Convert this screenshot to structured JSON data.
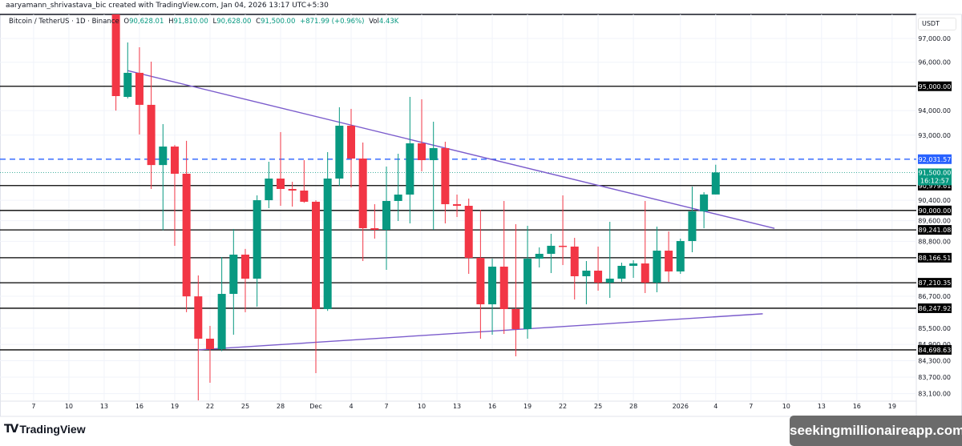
{
  "credit": "aaryamann_shrivastava_bic created with TradingView.com, Jan 04, 2026 13:17 UTC+5:30",
  "legend": {
    "symbol": "Bitcoin / TetherUS · 1D · Binance",
    "open_label": "O",
    "open": "90,628.01",
    "high_label": "H",
    "high": "91,810.00",
    "low_label": "L",
    "low": "90,628.00",
    "close_label": "C",
    "close": "91,500.00",
    "change": "+871.99 (+0.96%)",
    "vol_label": "Vol",
    "vol": "4.43K"
  },
  "price_axis": {
    "currency": "USDT",
    "scale": "log",
    "ticks": [
      "97,000.00",
      "96,000.00",
      "94,000.00",
      "93,000.00",
      "90,400.00",
      "89,600.00",
      "88,800.00",
      "86,700.00",
      "85,500.00",
      "84,900.00",
      "84,300.00",
      "83,700.00",
      "83,100.00"
    ],
    "tick_values": [
      97000,
      96000,
      94000,
      93000,
      90400,
      89600,
      88800,
      86700,
      85500,
      84900,
      84300,
      83700,
      83100
    ]
  },
  "time_axis": {
    "ticks": [
      {
        "label": "7",
        "date": "2025-11-07"
      },
      {
        "label": "10",
        "date": "2025-11-10"
      },
      {
        "label": "13",
        "date": "2025-11-13"
      },
      {
        "label": "16",
        "date": "2025-11-16"
      },
      {
        "label": "19",
        "date": "2025-11-19"
      },
      {
        "label": "22",
        "date": "2025-11-22"
      },
      {
        "label": "25",
        "date": "2025-11-25"
      },
      {
        "label": "28",
        "date": "2025-11-28"
      },
      {
        "label": "Dec",
        "date": "2025-12-01"
      },
      {
        "label": "4",
        "date": "2025-12-04"
      },
      {
        "label": "7",
        "date": "2025-12-07"
      },
      {
        "label": "10",
        "date": "2025-12-10"
      },
      {
        "label": "13",
        "date": "2025-12-13"
      },
      {
        "label": "16",
        "date": "2025-12-16"
      },
      {
        "label": "19",
        "date": "2025-12-19"
      },
      {
        "label": "22",
        "date": "2025-12-22"
      },
      {
        "label": "25",
        "date": "2025-12-25"
      },
      {
        "label": "28",
        "date": "2025-12-28"
      },
      {
        "label": "2026",
        "date": "2026-01-01"
      },
      {
        "label": "4",
        "date": "2026-01-04"
      },
      {
        "label": "7",
        "date": "2026-01-07"
      },
      {
        "label": "10",
        "date": "2026-01-10"
      },
      {
        "label": "13",
        "date": "2026-01-13"
      },
      {
        "label": "16",
        "date": "2026-01-16"
      },
      {
        "label": "19",
        "date": "2026-01-19"
      }
    ]
  },
  "levels": [
    {
      "price": 95000.0,
      "label": "95,000.00"
    },
    {
      "price": 90979.61,
      "label": "90,979.61"
    },
    {
      "price": 90000.0,
      "label": "90,000.00"
    },
    {
      "price": 89241.08,
      "label": "89,241.08"
    },
    {
      "price": 88166.51,
      "label": "88,166.51"
    },
    {
      "price": 87210.35,
      "label": "87,210.35"
    },
    {
      "price": 86247.92,
      "label": "86,247.92"
    },
    {
      "price": 84698.63,
      "label": "84,698.63"
    }
  ],
  "alert_line": {
    "price": 92031.57,
    "label": "92,031.57",
    "color": "#2962ff"
  },
  "last_price": {
    "price": 91500.0,
    "label": "91,500.00",
    "countdown": "16:12:57",
    "color": "#089981"
  },
  "trendlines": [
    {
      "from": {
        "date": "2025-11-15",
        "price": 95650
      },
      "to": {
        "date": "2026-01-09",
        "price": 89300
      }
    },
    {
      "from": {
        "date": "2025-11-21",
        "price": 84700
      },
      "to": {
        "date": "2026-01-08",
        "price": 86040
      }
    }
  ],
  "colors": {
    "up": "#089981",
    "down": "#f23645",
    "trendline": "#7b5ccc",
    "level": "#000000"
  },
  "chart_data": {
    "type": "candlestick",
    "ylim": [
      82900,
      98100
    ],
    "candles": [
      {
        "d": "2025-11-14",
        "o": 98400,
        "h": 99000,
        "l": 94000,
        "c": 94595
      },
      {
        "d": "2025-11-15",
        "o": 94562,
        "h": 96830,
        "l": 94500,
        "c": 95558
      },
      {
        "d": "2025-11-16",
        "o": 95558,
        "h": 96628,
        "l": 93027,
        "c": 94235
      },
      {
        "d": "2025-11-17",
        "o": 94235,
        "h": 96023,
        "l": 90846,
        "c": 91797
      },
      {
        "d": "2025-11-18",
        "o": 91797,
        "h": 93449,
        "l": 89227,
        "c": 92539
      },
      {
        "d": "2025-11-19",
        "o": 92539,
        "h": 92600,
        "l": 88623,
        "c": 91450
      },
      {
        "d": "2025-11-20",
        "o": 91450,
        "h": 92770,
        "l": 86098,
        "c": 86695
      },
      {
        "d": "2025-11-21",
        "o": 86695,
        "h": 87488,
        "l": 82740,
        "c": 85112
      },
      {
        "d": "2025-11-22",
        "o": 85112,
        "h": 85588,
        "l": 83494,
        "c": 84727
      },
      {
        "d": "2025-11-23",
        "o": 84727,
        "h": 88192,
        "l": 84650,
        "c": 86788
      },
      {
        "d": "2025-11-24",
        "o": 86788,
        "h": 89275,
        "l": 85259,
        "c": 88285
      },
      {
        "d": "2025-11-25",
        "o": 88285,
        "h": 88505,
        "l": 86098,
        "c": 87366
      },
      {
        "d": "2025-11-26",
        "o": 87366,
        "h": 90592,
        "l": 86306,
        "c": 90402
      },
      {
        "d": "2025-11-27",
        "o": 90402,
        "h": 91929,
        "l": 90088,
        "c": 91258
      },
      {
        "d": "2025-11-28",
        "o": 91258,
        "h": 93124,
        "l": 90182,
        "c": 90846
      },
      {
        "d": "2025-11-29",
        "o": 90846,
        "h": 91130,
        "l": 90151,
        "c": 90782
      },
      {
        "d": "2025-11-30",
        "o": 90782,
        "h": 91993,
        "l": 90300,
        "c": 90341
      },
      {
        "d": "2025-12-01",
        "o": 90341,
        "h": 90400,
        "l": 83845,
        "c": 86216
      },
      {
        "d": "2025-12-02",
        "o": 86216,
        "h": 92314,
        "l": 86150,
        "c": 91259
      },
      {
        "d": "2025-12-03",
        "o": 91259,
        "h": 94136,
        "l": 90972,
        "c": 93383
      },
      {
        "d": "2025-12-04",
        "o": 93383,
        "h": 94070,
        "l": 90909,
        "c": 92057
      },
      {
        "d": "2025-12-05",
        "o": 92057,
        "h": 92702,
        "l": 88039,
        "c": 89306
      },
      {
        "d": "2025-12-06",
        "o": 89306,
        "h": 90246,
        "l": 88902,
        "c": 89244
      },
      {
        "d": "2025-12-07",
        "o": 89244,
        "h": 91737,
        "l": 87701,
        "c": 90372
      },
      {
        "d": "2025-12-08",
        "o": 90372,
        "h": 92250,
        "l": 89587,
        "c": 90624
      },
      {
        "d": "2025-12-09",
        "o": 90624,
        "h": 94563,
        "l": 89493,
        "c": 92669
      },
      {
        "d": "2025-12-10",
        "o": 92669,
        "h": 94465,
        "l": 91546,
        "c": 91993
      },
      {
        "d": "2025-12-11",
        "o": 91993,
        "h": 93546,
        "l": 89244,
        "c": 92476
      },
      {
        "d": "2025-12-12",
        "o": 92476,
        "h": 92734,
        "l": 89493,
        "c": 90245
      },
      {
        "d": "2025-12-13",
        "o": 90245,
        "h": 90624,
        "l": 89744,
        "c": 90182
      },
      {
        "d": "2025-12-14",
        "o": 90182,
        "h": 90466,
        "l": 87549,
        "c": 88161
      },
      {
        "d": "2025-12-15",
        "o": 88161,
        "h": 90025,
        "l": 85112,
        "c": 86396
      },
      {
        "d": "2025-12-16",
        "o": 86396,
        "h": 88130,
        "l": 85259,
        "c": 87824
      },
      {
        "d": "2025-12-17",
        "o": 87824,
        "h": 90372,
        "l": 85289,
        "c": 86216
      },
      {
        "d": "2025-12-18",
        "o": 86216,
        "h": 89462,
        "l": 84461,
        "c": 85468
      },
      {
        "d": "2025-12-19",
        "o": 85468,
        "h": 89400,
        "l": 85112,
        "c": 88130
      },
      {
        "d": "2025-12-20",
        "o": 88130,
        "h": 88564,
        "l": 87793,
        "c": 88316
      },
      {
        "d": "2025-12-21",
        "o": 88316,
        "h": 89089,
        "l": 87579,
        "c": 88626
      },
      {
        "d": "2025-12-22",
        "o": 88626,
        "h": 90593,
        "l": 87885,
        "c": 88595
      },
      {
        "d": "2025-12-23",
        "o": 88595,
        "h": 88933,
        "l": 86577,
        "c": 87458
      },
      {
        "d": "2025-12-24",
        "o": 87458,
        "h": 88039,
        "l": 86396,
        "c": 87671
      },
      {
        "d": "2025-12-25",
        "o": 87671,
        "h": 88595,
        "l": 86910,
        "c": 87215
      },
      {
        "d": "2025-12-26",
        "o": 87215,
        "h": 89555,
        "l": 86637,
        "c": 87366
      },
      {
        "d": "2025-12-27",
        "o": 87366,
        "h": 87977,
        "l": 87245,
        "c": 87855
      },
      {
        "d": "2025-12-28",
        "o": 87855,
        "h": 88070,
        "l": 87397,
        "c": 87946
      },
      {
        "d": "2025-12-29",
        "o": 87946,
        "h": 90372,
        "l": 86820,
        "c": 87215
      },
      {
        "d": "2025-12-30",
        "o": 87215,
        "h": 89368,
        "l": 86850,
        "c": 88438
      },
      {
        "d": "2025-12-31",
        "o": 88438,
        "h": 89182,
        "l": 87245,
        "c": 87640
      },
      {
        "d": "2026-01-01",
        "o": 87640,
        "h": 88902,
        "l": 87549,
        "c": 88809
      },
      {
        "d": "2026-01-02",
        "o": 88809,
        "h": 90940,
        "l": 88377,
        "c": 89963
      },
      {
        "d": "2026-01-03",
        "o": 89963,
        "h": 90719,
        "l": 89306,
        "c": 90628.01
      },
      {
        "d": "2026-01-04",
        "o": 90628.01,
        "h": 91810,
        "l": 90628,
        "c": 91500
      }
    ]
  },
  "footer": {
    "brand": "TradingView",
    "watermark": "seekingmillionaireapp.com"
  }
}
